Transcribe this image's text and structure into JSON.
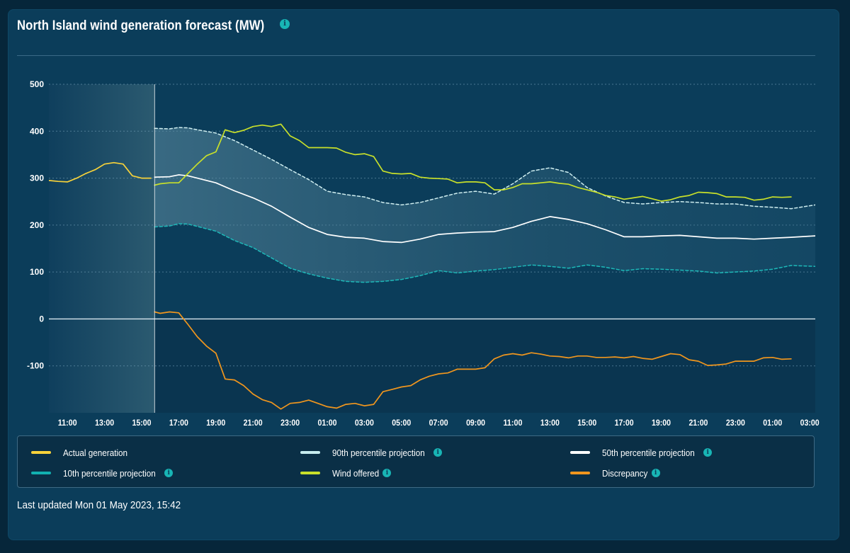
{
  "title": "North Island wind generation forecast (MW)",
  "info_icon": "info-icon",
  "last_updated": "Last updated Mon 01 May 2023, 15:42",
  "colors": {
    "actual": "#f7d23a",
    "wind_offered": "#c8e02a",
    "p50": "#ffffff",
    "p90": "#cfeef0",
    "p10": "#1db8b8",
    "discrepancy": "#f0961e",
    "info": "#18b5b5"
  },
  "legend": [
    {
      "label": "Actual generation",
      "color": "#f7d23a",
      "info": false
    },
    {
      "label": "90th percentile projection",
      "color": "#c6ecef",
      "info": true
    },
    {
      "label": "50th percentile projection",
      "color": "#ffffff",
      "info": true
    },
    {
      "label": "10th percentile projection",
      "color": "#12b0b0",
      "info": true
    },
    {
      "label": "Wind offered",
      "color": "#c8e02a",
      "info": true
    },
    {
      "label": "Discrepancy",
      "color": "#f0961e",
      "info": true
    }
  ],
  "chart_data": {
    "type": "line",
    "title": "North Island wind generation forecast (MW)",
    "ylim": [
      -200,
      500
    ],
    "yticks": [
      500,
      400,
      300,
      200,
      100,
      0,
      -100
    ],
    "xlim": [
      10.0,
      51.3
    ],
    "x_unit": "hours from 00:00 on 30 Apr 2023",
    "xticks": [
      11,
      13,
      15,
      17,
      19,
      21,
      23,
      25,
      27,
      29,
      31,
      33,
      35,
      37,
      39,
      41,
      43,
      45,
      47,
      49,
      51
    ],
    "xtick_labels": [
      "11:00",
      "13:00",
      "15:00",
      "17:00",
      "19:00",
      "21:00",
      "23:00",
      "01:00",
      "03:00",
      "05:00",
      "07:00",
      "09:00",
      "11:00",
      "13:00",
      "15:00",
      "17:00",
      "19:00",
      "21:00",
      "23:00",
      "01:00",
      "03:00"
    ],
    "now": 15.7,
    "grid": true,
    "legend_position": "bottom",
    "series": [
      {
        "name": "Actual generation",
        "style": "solid",
        "x": [
          10,
          10.5,
          11,
          11.5,
          12,
          12.5,
          13,
          13.5,
          14,
          14.5,
          15,
          15.5
        ],
        "y": [
          295,
          293,
          292,
          300,
          310,
          318,
          330,
          333,
          330,
          305,
          300,
          300
        ]
      },
      {
        "name": "90th percentile projection",
        "style": "dashed",
        "x": [
          15.7,
          16.5,
          17,
          17.5,
          18,
          19,
          20,
          21,
          22,
          23,
          24,
          25,
          26,
          27,
          28,
          29,
          30,
          31,
          32,
          33,
          34,
          35,
          36,
          37,
          38,
          39,
          40,
          41,
          42,
          43,
          44,
          45,
          46,
          47,
          48,
          49,
          50,
          51.3
        ],
        "y": [
          406,
          405,
          408,
          407,
          403,
          396,
          380,
          360,
          340,
          318,
          297,
          272,
          265,
          260,
          248,
          243,
          248,
          258,
          268,
          272,
          266,
          288,
          315,
          322,
          312,
          280,
          262,
          248,
          245,
          248,
          250,
          248,
          245,
          245,
          240,
          238,
          235,
          243
        ]
      },
      {
        "name": "50th percentile projection",
        "style": "solid",
        "x": [
          15.7,
          16.5,
          17,
          17.5,
          18,
          19,
          20,
          21,
          22,
          23,
          24,
          25,
          26,
          27,
          28,
          29,
          30,
          31,
          32,
          33,
          34,
          35,
          36,
          37,
          38,
          39,
          40,
          41,
          42,
          43,
          44,
          45,
          46,
          47,
          48,
          49,
          50,
          51.3
        ],
        "y": [
          302,
          303,
          307,
          305,
          300,
          290,
          273,
          258,
          240,
          217,
          195,
          180,
          174,
          172,
          165,
          163,
          170,
          180,
          183,
          185,
          186,
          195,
          208,
          218,
          212,
          203,
          190,
          175,
          175,
          177,
          178,
          175,
          172,
          172,
          170,
          172,
          174,
          177
        ]
      },
      {
        "name": "10th percentile projection",
        "style": "dashed",
        "x": [
          15.7,
          16.5,
          17,
          17.5,
          18,
          19,
          20,
          21,
          22,
          23,
          24,
          25,
          26,
          27,
          28,
          29,
          30,
          31,
          32,
          33,
          34,
          35,
          36,
          37,
          38,
          39,
          40,
          41,
          42,
          43,
          44,
          45,
          46,
          47,
          48,
          49,
          50,
          51.3
        ],
        "y": [
          196,
          198,
          203,
          202,
          197,
          187,
          167,
          152,
          130,
          108,
          96,
          87,
          80,
          78,
          80,
          84,
          92,
          103,
          98,
          102,
          105,
          110,
          115,
          112,
          108,
          115,
          110,
          103,
          107,
          106,
          104,
          102,
          98,
          100,
          102,
          106,
          114,
          112
        ]
      },
      {
        "name": "Wind offered",
        "style": "solid",
        "x": [
          15.7,
          16,
          16.5,
          17,
          17.5,
          18,
          18.5,
          19,
          19.5,
          20,
          20.5,
          21,
          21.5,
          22,
          22.5,
          23,
          23.5,
          24,
          25,
          25.5,
          26,
          26.5,
          27,
          27.5,
          28,
          28.5,
          29,
          29.5,
          30,
          30.5,
          31,
          31.5,
          32,
          32.5,
          33,
          33.5,
          34,
          34.5,
          35,
          35.5,
          36,
          36.5,
          37,
          37.5,
          38,
          38.5,
          39,
          39.5,
          40,
          40.5,
          41,
          41.5,
          42,
          42.5,
          43,
          43.5,
          44,
          44.5,
          45,
          45.5,
          46,
          46.5,
          47,
          47.5,
          48,
          48.5,
          49,
          49.5,
          50
        ],
        "y": [
          285,
          288,
          290,
          290,
          310,
          330,
          348,
          356,
          403,
          397,
          402,
          410,
          413,
          410,
          415,
          390,
          380,
          365,
          365,
          364,
          355,
          350,
          352,
          346,
          315,
          310,
          309,
          310,
          302,
          300,
          299,
          298,
          290,
          292,
          292,
          290,
          275,
          275,
          280,
          288,
          288,
          290,
          292,
          289,
          287,
          280,
          275,
          270,
          263,
          260,
          255,
          258,
          261,
          256,
          251,
          254,
          260,
          263,
          270,
          269,
          267,
          260,
          260,
          259,
          253,
          255,
          260,
          259,
          260
        ]
      },
      {
        "name": "Discrepancy",
        "style": "solid",
        "x": [
          15.7,
          16,
          16.5,
          17,
          17.5,
          18,
          18.5,
          19,
          19.5,
          20,
          20.5,
          21,
          21.5,
          22,
          22.5,
          23,
          23.5,
          24,
          24.5,
          25,
          25.5,
          26,
          26.5,
          27,
          27.5,
          28,
          28.5,
          29,
          29.5,
          30,
          30.5,
          31,
          31.5,
          32,
          32.5,
          33,
          33.5,
          34,
          34.5,
          35,
          35.5,
          36,
          36.5,
          37,
          37.5,
          38,
          38.5,
          39,
          39.5,
          40,
          40.5,
          41,
          41.5,
          42,
          42.5,
          43,
          43.5,
          44,
          44.5,
          45,
          45.5,
          46,
          46.5,
          47,
          47.5,
          48,
          48.5,
          49,
          49.5,
          50
        ],
        "y": [
          15,
          12,
          15,
          13,
          -12,
          -38,
          -58,
          -73,
          -128,
          -130,
          -142,
          -160,
          -172,
          -178,
          -192,
          -180,
          -178,
          -173,
          -180,
          -187,
          -190,
          -182,
          -180,
          -185,
          -182,
          -155,
          -150,
          -145,
          -142,
          -130,
          -122,
          -117,
          -115,
          -107,
          -107,
          -107,
          -104,
          -85,
          -77,
          -74,
          -77,
          -72,
          -75,
          -79,
          -80,
          -83,
          -79,
          -79,
          -82,
          -82,
          -81,
          -83,
          -80,
          -84,
          -86,
          -80,
          -74,
          -76,
          -87,
          -90,
          -99,
          -98,
          -96,
          -90,
          -90,
          -90,
          -83,
          -82,
          -86,
          -85
        ]
      }
    ]
  }
}
